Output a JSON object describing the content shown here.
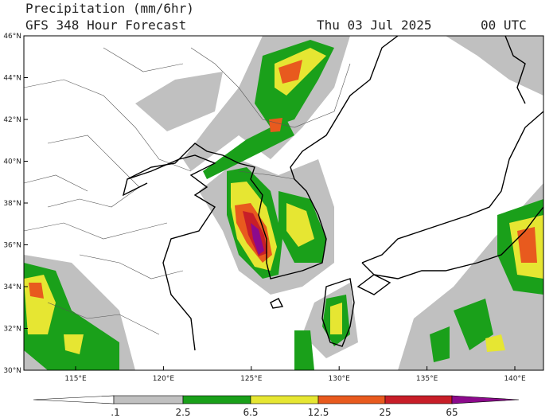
{
  "header": {
    "title": "Precipitation (mm/6hr)",
    "subtitle": "GFS 348 Hour Forecast",
    "date": "Thu 03 Jul 2025",
    "time": "00 UTC"
  },
  "map": {
    "latitude_labels": [
      "46°N",
      "44°N",
      "42°N",
      "40°N",
      "38°N",
      "36°N",
      "34°N",
      "32°N",
      "30°N"
    ],
    "longitude_labels": [
      "115°E",
      "120°E",
      "125°E",
      "130°E",
      "135°E",
      "140°E"
    ]
  },
  "colorbar": {
    "labels": [
      ".1",
      "2.5",
      "6.5",
      "12.5",
      "25",
      "65"
    ]
  }
}
